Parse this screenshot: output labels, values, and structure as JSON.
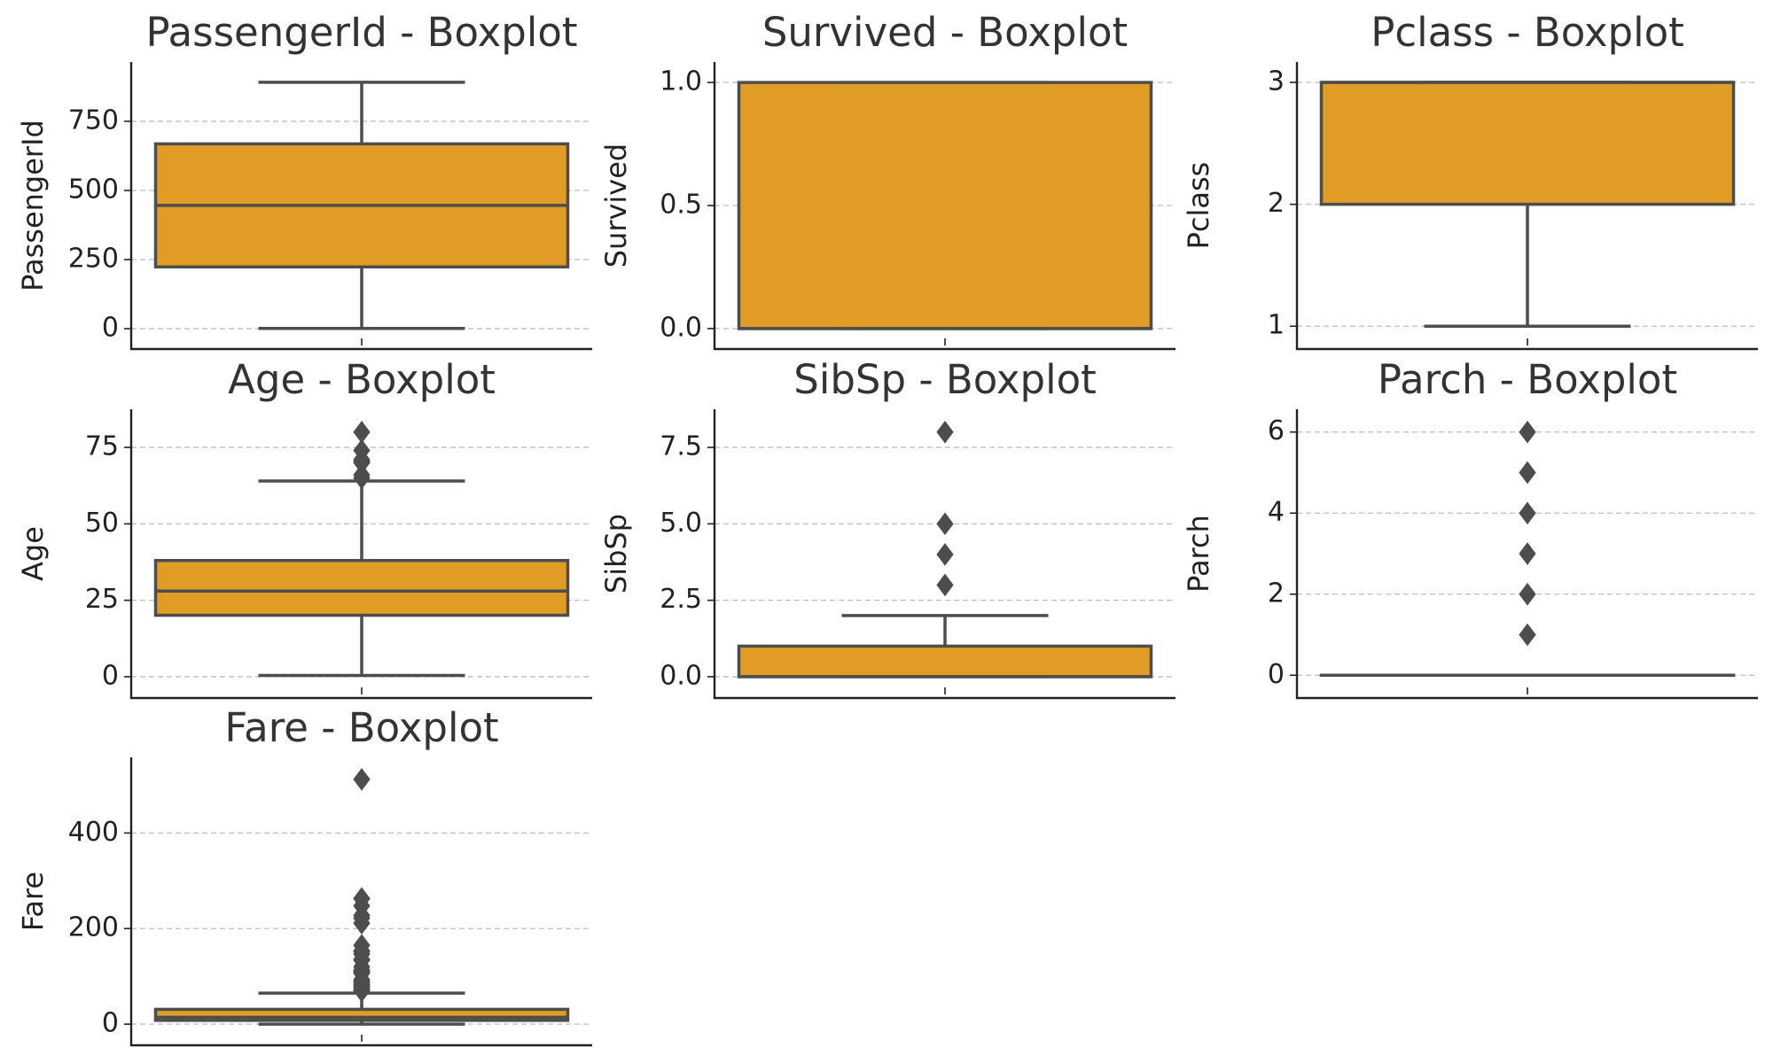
{
  "colors": {
    "box_fill": "#e09c24",
    "line": "#4d4d4d",
    "grid": "#bdbdbd"
  },
  "chart_data": [
    {
      "type": "box",
      "title": "PassengerId - Boxplot",
      "ylabel": "PassengerId",
      "ylim": [
        -35,
        926
      ],
      "yticks": [
        0,
        250,
        500,
        750
      ],
      "ytick_labels": [
        "0",
        "250",
        "500",
        "750"
      ],
      "whisker_low": 1,
      "q1": 223.5,
      "median": 446,
      "q3": 668.5,
      "whisker_high": 891,
      "outliers": []
    },
    {
      "type": "box",
      "title": "Survived - Boxplot",
      "ylabel": "Survived",
      "ylim": [
        -0.04,
        1.04
      ],
      "yticks": [
        0,
        0.5,
        1
      ],
      "ytick_labels": [
        "0.0",
        "0.5",
        "1.0"
      ],
      "whisker_low": 0,
      "q1": 0,
      "median": 0,
      "q3": 1,
      "whisker_high": 1,
      "outliers": []
    },
    {
      "type": "box",
      "title": "Pclass - Boxplot",
      "ylabel": "Pclass",
      "ylim": [
        0.9,
        3.08
      ],
      "yticks": [
        1,
        2,
        3
      ],
      "ytick_labels": [
        "1",
        "2",
        "3"
      ],
      "whisker_low": 1,
      "q1": 2,
      "median": 3,
      "q3": 3,
      "whisker_high": 3,
      "outliers": []
    },
    {
      "type": "box",
      "title": "Age - Boxplot",
      "ylabel": "Age",
      "ylim": [
        -3.5,
        84
      ],
      "yticks": [
        0,
        25,
        50,
        75
      ],
      "ytick_labels": [
        "0",
        "25",
        "50",
        "75"
      ],
      "whisker_low": 0.42,
      "q1": 20.1,
      "median": 28,
      "q3": 38,
      "whisker_high": 64,
      "outliers": [
        65,
        66,
        70,
        70.5,
        71,
        74,
        80
      ]
    },
    {
      "type": "box",
      "title": "SibSp - Boxplot",
      "ylabel": "SibSp",
      "ylim": [
        -0.35,
        8.4
      ],
      "yticks": [
        0,
        2.5,
        5,
        7.5
      ],
      "ytick_labels": [
        "0.0",
        "2.5",
        "5.0",
        "7.5"
      ],
      "whisker_low": 0,
      "q1": 0,
      "median": 0,
      "q3": 1,
      "whisker_high": 2,
      "outliers": [
        3,
        4,
        5,
        8
      ]
    },
    {
      "type": "box",
      "title": "Parch - Boxplot",
      "ylabel": "Parch",
      "ylim": [
        -0.3,
        6.3
      ],
      "yticks": [
        0,
        2,
        4,
        6
      ],
      "ytick_labels": [
        "0",
        "2",
        "4",
        "6"
      ],
      "whisker_low": 0,
      "q1": 0,
      "median": 0,
      "q3": 0,
      "whisker_high": 0,
      "outliers": [
        1,
        2,
        3,
        4,
        5,
        6
      ]
    },
    {
      "type": "box",
      "title": "Fare - Boxplot",
      "ylabel": "Fare",
      "ylim": [
        -22,
        536
      ],
      "yticks": [
        0,
        200,
        400
      ],
      "ytick_labels": [
        "0",
        "200",
        "400"
      ],
      "whisker_low": 0,
      "q1": 7.9,
      "median": 14.45,
      "q3": 31,
      "whisker_high": 65,
      "outliers": [
        69.5,
        71.3,
        73.5,
        76.7,
        79.2,
        82.2,
        83.2,
        86.5,
        89.1,
        90,
        93.5,
        106.4,
        108.9,
        110.9,
        113.3,
        120,
        133.7,
        135.6,
        146.5,
        151.6,
        153.5,
        164.9,
        211.3,
        221.8,
        227.5,
        247.5,
        262.4,
        263,
        512.3
      ]
    }
  ]
}
